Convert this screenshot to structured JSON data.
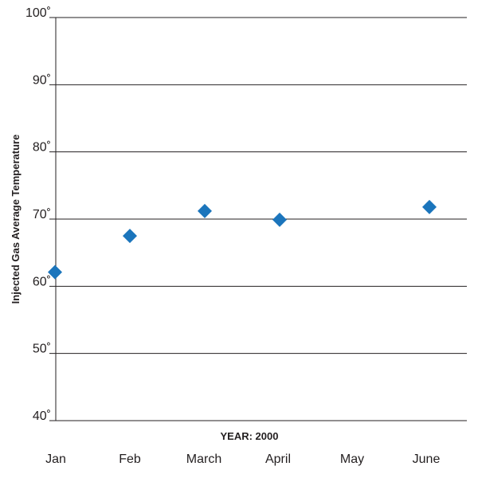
{
  "chart_data": {
    "type": "scatter",
    "marker": "diamond",
    "color": "#1b75bc",
    "categories": [
      "Jan",
      "Feb",
      "March",
      "April",
      "May",
      "June"
    ],
    "series": [
      {
        "values": [
          62.1,
          67.5,
          71.2,
          69.9,
          null,
          71.8
        ]
      }
    ],
    "xlabel": "YEAR: 2000",
    "ylabel": "Injected Gas Average Temperature",
    "ylim": [
      40,
      100
    ],
    "yticks": [
      40,
      50,
      60,
      70,
      80,
      90,
      100
    ],
    "ytick_labels": [
      "40˚",
      "50˚",
      "60˚",
      "70˚",
      "80˚",
      "90˚",
      "100˚"
    ],
    "grid": true,
    "legend": "none"
  }
}
